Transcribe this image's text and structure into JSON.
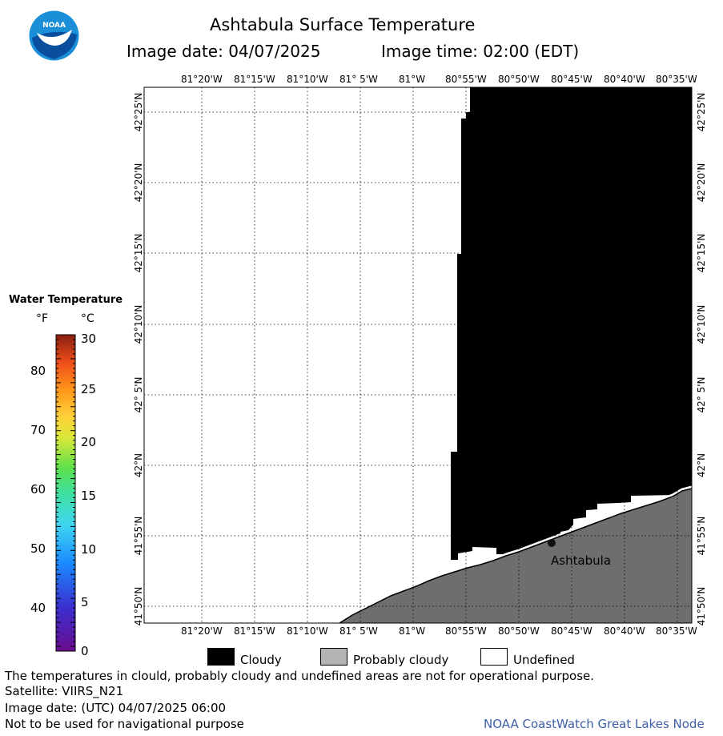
{
  "header": {
    "title": "Ashtabula Surface Temperature",
    "image_date_label": "Image date: 04/07/2025",
    "image_time_label": "Image time: 02:00 (EDT)",
    "logo_text": "NOAA"
  },
  "map": {
    "lon_labels": [
      "81°20'W",
      "81°15'W",
      "81°10'W",
      "81° 5'W",
      "81°W",
      "80°55'W",
      "80°50'W",
      "80°45'W",
      "80°40'W",
      "80°35'W"
    ],
    "lat_labels": [
      "42°25'N",
      "42°20'N",
      "42°15'N",
      "42°10'N",
      "42° 5'N",
      "42°N",
      "41°55'N",
      "41°50'N"
    ],
    "city_label": "Ashtabula"
  },
  "colorbar": {
    "title": "Water Temperature",
    "unit_f": "°F",
    "unit_c": "°C",
    "f_labels": [
      "80",
      "70",
      "60",
      "50",
      "40"
    ],
    "c_labels": [
      "30",
      "25",
      "20",
      "15",
      "10",
      "5",
      "0"
    ]
  },
  "legend": {
    "cloudy": "Cloudy",
    "probably_cloudy": "Probably cloudy",
    "undefined": "Undefined",
    "colors": {
      "cloudy": "#000000",
      "probably_cloudy": "#b4b4b4",
      "undefined": "#ffffff",
      "land": "#6e6e6e"
    }
  },
  "footer": {
    "line1": "The temperatures in clould, probably cloudy and undefined areas are not for operational purpose.",
    "line2": "Satellite: VIIRS_N21",
    "line3": "Image date: (UTC) 04/07/2025  06:00",
    "line4": "Not to be used for navigational purpose",
    "credit": "NOAA CoastWatch Great Lakes Node"
  }
}
